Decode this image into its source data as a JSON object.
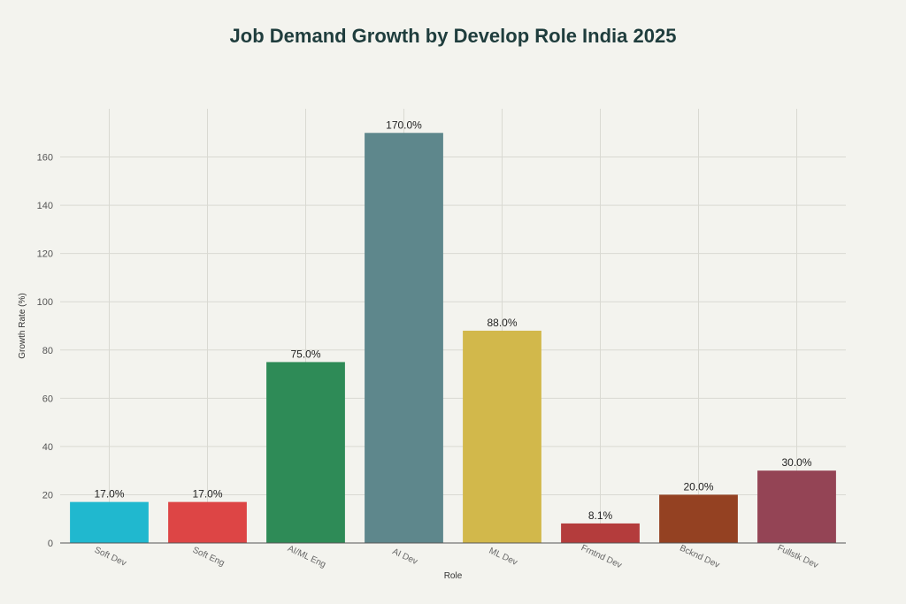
{
  "chart_data": {
    "type": "bar",
    "title": "Job Demand Growth by Develop Role India 2025",
    "xlabel": "Role",
    "ylabel": "Growth Rate (%)",
    "categories": [
      "Soft Dev",
      "Soft Eng",
      "AI/ML Eng",
      "AI Dev",
      "ML Dev",
      "Frntnd Dev",
      "Bcknd Dev",
      "Fullstk Dev"
    ],
    "values": [
      17.0,
      17.0,
      75.0,
      170.0,
      88.0,
      8.1,
      20.0,
      30.0
    ],
    "data_labels": [
      "17.0%",
      "17.0%",
      "75.0%",
      "170.0%",
      "88.0%",
      "8.1%",
      "20.0%",
      "30.0%"
    ],
    "colors": [
      "#20b8cf",
      "#dd4545",
      "#2e8b57",
      "#5e878c",
      "#d2b84b",
      "#b43c3c",
      "#944122",
      "#944455"
    ],
    "yticks": [
      0,
      20,
      40,
      60,
      80,
      100,
      120,
      140,
      160
    ],
    "ylim": [
      0,
      180
    ],
    "grid": true,
    "legend": "none"
  }
}
